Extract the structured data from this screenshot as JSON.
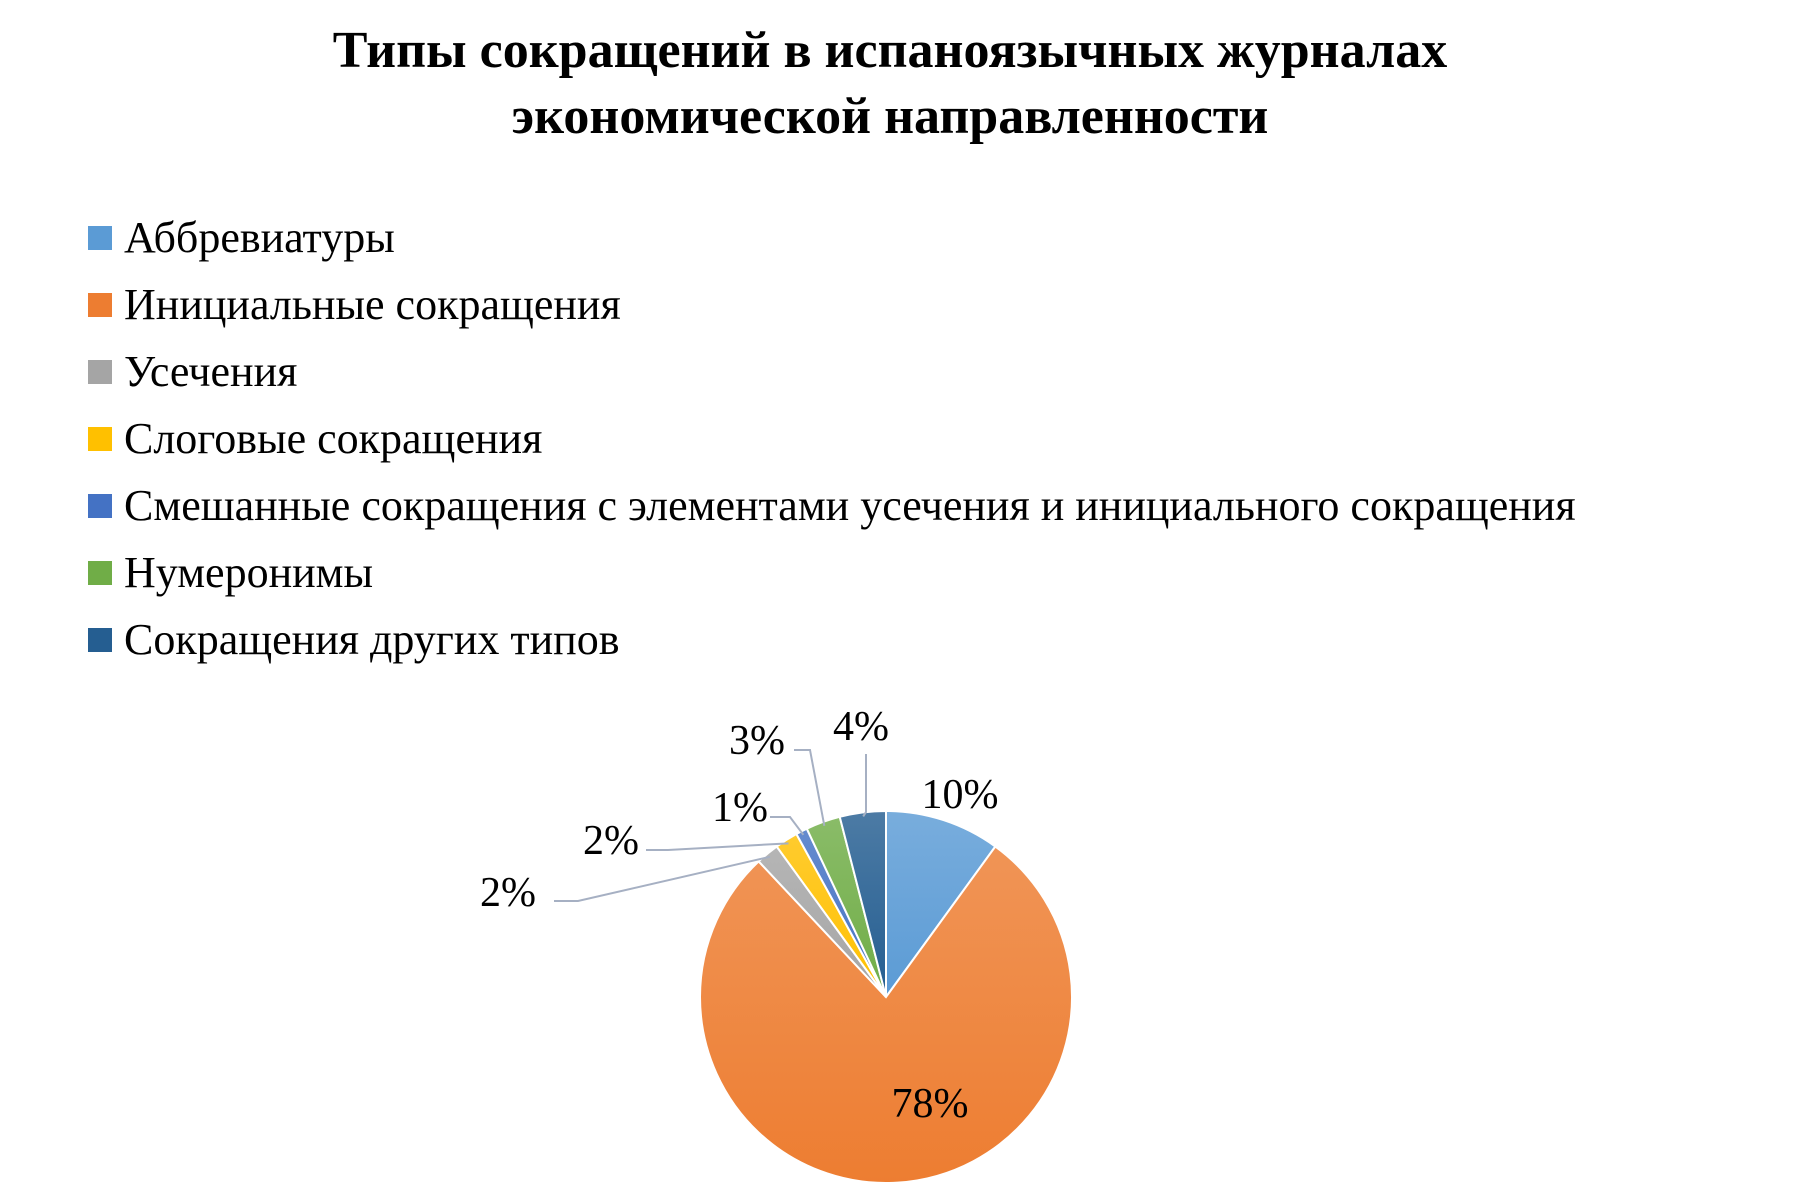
{
  "chart_data": {
    "type": "pie",
    "title": "Типы сокращений в испаноязычных журналах экономической направленности",
    "title_lines": [
      "Типы сокращений в испаноязычных журналах",
      "экономической направленности"
    ],
    "legend_position": "top-left",
    "slices": [
      {
        "label": "Аббревиатуры",
        "value": 10,
        "data_label": "10%",
        "color": "#5B9BD5"
      },
      {
        "label": "Инициальные сокращения",
        "value": 78,
        "data_label": "78%",
        "color": "#ED7D31"
      },
      {
        "label": "Усечения",
        "value": 2,
        "data_label": "2%",
        "color": "#A5A5A5"
      },
      {
        "label": "Слоговые сокращения",
        "value": 2,
        "data_label": "2%",
        "color": "#FFC000"
      },
      {
        "label": "Смешанные сокращения с элементами усечения и инициального сокращения",
        "value": 1,
        "data_label": "1%",
        "color": "#4472C4"
      },
      {
        "label": "Нумеронимы",
        "value": 3,
        "data_label": "3%",
        "color": "#70AD47"
      },
      {
        "label": "Сокращения других типов",
        "value": 4,
        "data_label": "4%",
        "color": "#255E91"
      }
    ]
  }
}
